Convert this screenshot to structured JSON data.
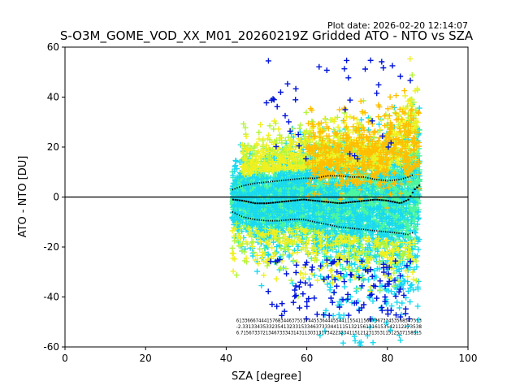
{
  "chart_data": {
    "type": "scatter",
    "title": "S-O3M_GOME_VOD_XX_M01_20260219Z Gridded ATO - NTO vs SZA",
    "plot_date": "Plot date: 2026-02-20 12:14:07",
    "xlabel": "SZA [degree]",
    "ylabel": "ATO - NTO [DU]",
    "xlim": [
      0,
      100
    ],
    "ylim": [
      -60,
      60
    ],
    "xticks": [
      0,
      20,
      40,
      60,
      80,
      100
    ],
    "yticks": [
      -60,
      -40,
      -20,
      0,
      20,
      40,
      60
    ],
    "reference_line_y": 0,
    "marker": "+",
    "colors": {
      "cyan": "#19d9f0",
      "mint": "#4cf5a0",
      "yellow_green": "#b5f53a",
      "yellow": "#f0f020",
      "orange": "#ffbf00",
      "blue": "#0014d9",
      "mean": "#000000"
    },
    "scatter_envelope": {
      "sza_range": [
        41.5,
        88
      ],
      "typical_spread_du": [
        -15,
        18
      ],
      "outlier_low_du": -60,
      "outlier_high_du": 60
    },
    "mean_curve": {
      "x": [
        41.5,
        44,
        47,
        50,
        53,
        56,
        59,
        62,
        65,
        68,
        71,
        74,
        77,
        80,
        83,
        85,
        86.5,
        88
      ],
      "y": [
        -1,
        -1.5,
        -2.5,
        -2.5,
        -2,
        -1.5,
        -1,
        -1.5,
        -2,
        -2.5,
        -2,
        -1.5,
        -1,
        -1.5,
        -2.5,
        -1,
        3,
        5
      ]
    },
    "upper_sigma_curve": {
      "x": [
        41.5,
        44,
        47,
        50,
        53,
        56,
        59,
        62,
        65,
        68,
        71,
        74,
        77,
        80,
        83,
        85,
        86.5
      ],
      "y": [
        3,
        4.5,
        5.5,
        6,
        6.5,
        7,
        7.5,
        7.5,
        8.5,
        8.5,
        8,
        8,
        7,
        6.5,
        7,
        8,
        9
      ]
    },
    "lower_sigma_curve": {
      "x": [
        41.5,
        44,
        47,
        50,
        53,
        56,
        59,
        62,
        65,
        68,
        71,
        74,
        77,
        80,
        83,
        85,
        86.5
      ],
      "y": [
        -6,
        -8,
        -9,
        -9.5,
        -9.5,
        -9,
        -9,
        -10,
        -11,
        -12,
        -12.5,
        -13,
        -13.5,
        -14,
        -14.5,
        -15,
        -14
      ]
    },
    "stats_rows": [
      "6133666744415768344637551744553644455441155411566736733453568547513",
      "-2.3313343533235413233153346373334411151321561316153542112273538",
      "6.71567337213467333431431130313173422323411512123135311512537158315"
    ]
  }
}
